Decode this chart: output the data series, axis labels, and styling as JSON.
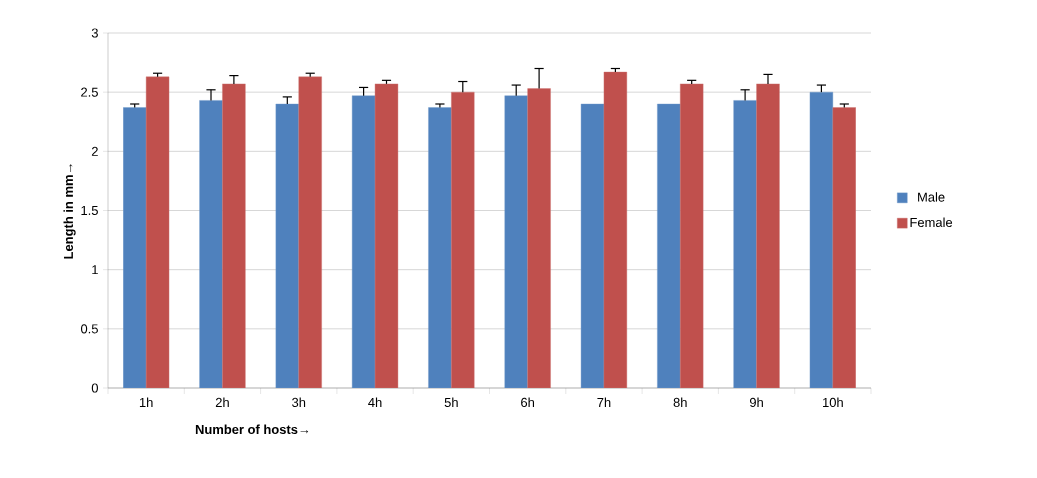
{
  "chart_data": {
    "type": "bar",
    "xlabel": "Number of hosts→",
    "ylabel": "Length in mm→",
    "categories": [
      "1h",
      "2h",
      "3h",
      "4h",
      "5h",
      "6h",
      "7h",
      "8h",
      "9h",
      "10h"
    ],
    "series": [
      {
        "name": "Male",
        "color": "#4f81bd",
        "values": [
          2.37,
          2.43,
          2.4,
          2.47,
          2.37,
          2.47,
          2.4,
          2.4,
          2.43,
          2.5
        ],
        "errors": [
          0.03,
          0.09,
          0.06,
          0.07,
          0.03,
          0.09,
          null,
          null,
          0.09,
          0.06
        ]
      },
      {
        "name": "Female",
        "color": "#c0504d",
        "values": [
          2.63,
          2.57,
          2.63,
          2.57,
          2.5,
          2.53,
          2.67,
          2.57,
          2.57,
          2.37
        ],
        "errors": [
          0.03,
          0.07,
          0.03,
          0.03,
          0.09,
          0.17,
          0.03,
          0.03,
          0.08,
          0.03
        ]
      }
    ],
    "ylim": [
      0,
      3
    ],
    "yticks": [
      0,
      0.5,
      1,
      1.5,
      2,
      2.5,
      3
    ],
    "grid": "y",
    "legend": "right"
  }
}
